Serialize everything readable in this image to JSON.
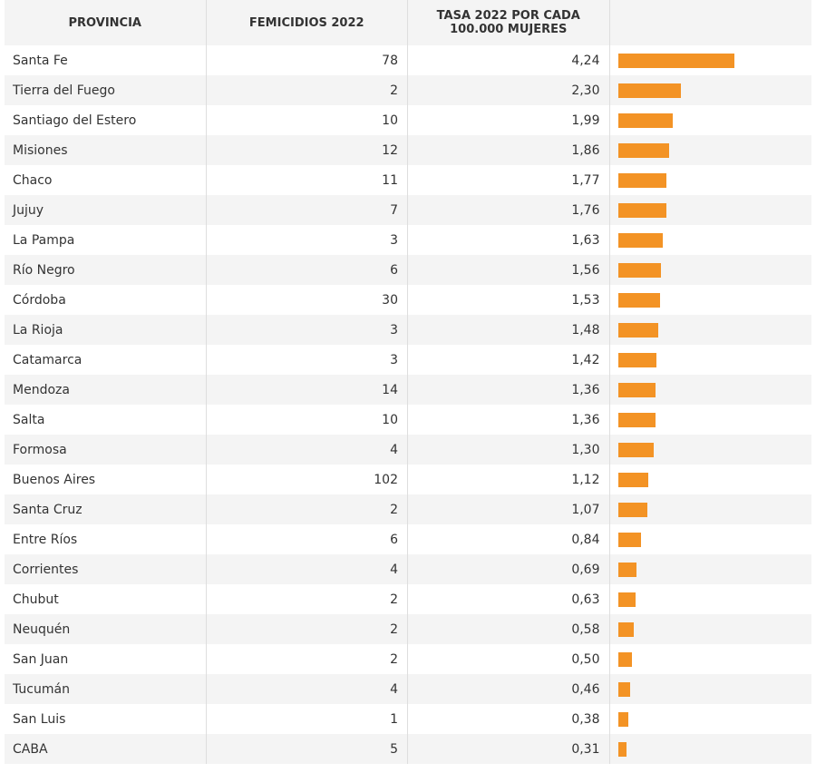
{
  "table": {
    "headers": [
      "PROVINCIA",
      "FEMICIDIOS 2022",
      "TASA 2022 POR CADA 100.000 MUJERES"
    ],
    "rows": [
      [
        "Santa Fe",
        78,
        {
          "value": 4.24,
          "label": "4,24"
        }
      ],
      [
        "Tierra del Fuego",
        2,
        {
          "value": 2.3,
          "label": "2,30"
        }
      ],
      [
        "Santiago del Estero",
        10,
        {
          "value": 1.99,
          "label": "1,99"
        }
      ],
      [
        "Misiones",
        12,
        {
          "value": 1.86,
          "label": "1,86"
        }
      ],
      [
        "Chaco",
        11,
        {
          "value": 1.77,
          "label": "1,77"
        }
      ],
      [
        "Jujuy",
        7,
        {
          "value": 1.76,
          "label": "1,76"
        }
      ],
      [
        "La Pampa",
        3,
        {
          "value": 1.63,
          "label": "1,63"
        }
      ],
      [
        "Río Negro",
        6,
        {
          "value": 1.56,
          "label": "1,56"
        }
      ],
      [
        "Córdoba",
        30,
        {
          "value": 1.53,
          "label": "1,53"
        }
      ],
      [
        "La Rioja",
        3,
        {
          "value": 1.48,
          "label": "1,48"
        }
      ],
      [
        "Catamarca",
        3,
        {
          "value": 1.42,
          "label": "1,42"
        }
      ],
      [
        "Mendoza",
        14,
        {
          "value": 1.36,
          "label": "1,36"
        }
      ],
      [
        "Salta",
        10,
        {
          "value": 1.36,
          "label": "1,36"
        }
      ],
      [
        "Formosa",
        4,
        {
          "value": 1.3,
          "label": "1,30"
        }
      ],
      [
        "Buenos Aires",
        102,
        {
          "value": 1.12,
          "label": "1,12"
        }
      ],
      [
        "Santa Cruz",
        2,
        {
          "value": 1.07,
          "label": "1,07"
        }
      ],
      [
        "Entre Ríos",
        6,
        {
          "value": 0.84,
          "label": "0,84"
        }
      ],
      [
        "Corrientes",
        4,
        {
          "value": 0.69,
          "label": "0,69"
        }
      ],
      [
        "Chubut",
        2,
        {
          "value": 0.63,
          "label": "0,63"
        }
      ],
      [
        "Neuquén",
        2,
        {
          "value": 0.58,
          "label": "0,58"
        }
      ],
      [
        "San Juan",
        2,
        {
          "value": 0.5,
          "label": "0,50"
        }
      ],
      [
        "Tucumán",
        4,
        {
          "value": 0.46,
          "label": "0,46"
        }
      ],
      [
        "San Luis",
        1,
        {
          "value": 0.38,
          "label": "0,38"
        }
      ],
      [
        "CABA",
        5,
        {
          "value": 0.31,
          "label": "0,31"
        }
      ]
    ],
    "bar_color": "#f39325"
  }
}
